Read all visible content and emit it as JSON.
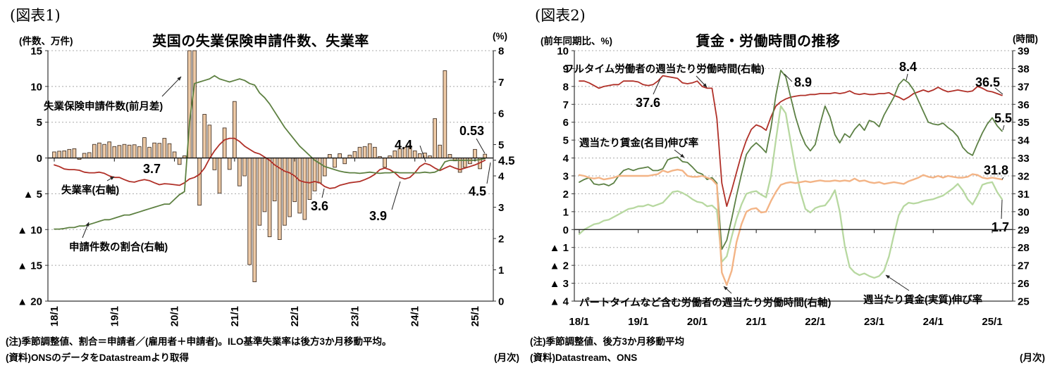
{
  "figure1": {
    "tag": "(図表1)",
    "title": "英国の失業保険申請件数、失業率",
    "unit_left": "(件数、万件)",
    "unit_right": "(%)",
    "note1": "(注)季節調整値、割合＝申請者／(雇用者＋申請者)。ILO基準失業率は後方3か月移動平均。",
    "note2": "(資料)ONSのデータをDatastreamより取得",
    "freq": "(月次)",
    "ann": {
      "bars": "失業保険申請件数(前月差)",
      "rate": "失業率(右軸)",
      "ratio": "申請件数の割合(右軸)",
      "v37": "3.7",
      "v36": "3.6",
      "v39": "3.9",
      "v44": "4.4",
      "v053": "0.53",
      "v45": "4.5"
    }
  },
  "figure2": {
    "tag": "(図表2)",
    "title": "賃金・労働時間の推移",
    "unit_left": "(前年同期比、%)",
    "unit_right": "(時間)",
    "note1": "(注)季節調整値、後方3か月移動平均",
    "note2": "(資料)Datastream、ONS",
    "freq": "(月次)",
    "ann": {
      "ft": "フルタイム労働者の週当たり労働時間(右軸)",
      "v376": "37.6",
      "nom": "週当たり賃金(名目)伸び率",
      "v89": "8.9",
      "v84": "8.4",
      "v365": "36.5",
      "v55": "5.5",
      "v318": "31.8",
      "v17": "1.7",
      "pt": "パートタイムなど含む労働者の週当たり労働時間(右軸)",
      "real": "週当たり賃金(実質)伸び率"
    }
  },
  "chart_data": [
    {
      "id": "uk-claims-unemployment",
      "type": "bar+line",
      "title": "英国の失業保険申請件数、失業率",
      "frequency": "monthly",
      "x_start": "2018-01",
      "x_end": "2025-03",
      "clipped_note": "2020/4 and 2020/5 claim bars exceed the axis and are clipped at +15",
      "x_axis": {
        "ticks": [
          {
            "i": 0,
            "label": "18/1"
          },
          {
            "i": 12,
            "label": "19/1"
          },
          {
            "i": 24,
            "label": "20/1"
          },
          {
            "i": 36,
            "label": "21/1"
          },
          {
            "i": 48,
            "label": "22/1"
          },
          {
            "i": 60,
            "label": "23/1"
          },
          {
            "i": 72,
            "label": "24/1"
          },
          {
            "i": 84,
            "label": "25/1"
          }
        ]
      },
      "y_axis_left": {
        "label": "件数、万件",
        "range": [
          -20,
          15
        ],
        "ticks": [
          {
            "v": 15,
            "label": "15"
          },
          {
            "v": 10,
            "label": "10"
          },
          {
            "v": 5,
            "label": "5"
          },
          {
            "v": 0,
            "label": "0"
          },
          {
            "v": -5,
            "label": "▲ 5"
          },
          {
            "v": -10,
            "label": "▲ 10"
          },
          {
            "v": -15,
            "label": "▲ 15"
          },
          {
            "v": -20,
            "label": "▲ 20"
          }
        ]
      },
      "y_axis_right": {
        "label": "%",
        "range": [
          0,
          8
        ],
        "ticks": [
          {
            "v": 8,
            "label": "8"
          },
          {
            "v": 7,
            "label": "7"
          },
          {
            "v": 6,
            "label": "6"
          },
          {
            "v": 5,
            "label": "5"
          },
          {
            "v": 4.5,
            "label": "4.5",
            "em": true
          },
          {
            "v": 4,
            "label": "4"
          },
          {
            "v": 3,
            "label": "3"
          },
          {
            "v": 2,
            "label": "2"
          },
          {
            "v": 1,
            "label": "1"
          },
          {
            "v": 0,
            "label": "0"
          }
        ]
      },
      "series": [
        {
          "id": "claims-change",
          "name": "失業保険申請件数(前月差)",
          "type": "bar",
          "axis": "left",
          "color": "#eecaa6",
          "border": "#453428",
          "values": [
            0.85,
            0.95,
            1.0,
            1.2,
            1.3,
            -0.2,
            0.65,
            0.75,
            1.9,
            2.1,
            1.9,
            2.25,
            1.6,
            1.75,
            1.9,
            1.8,
            1.85,
            1.6,
            2.85,
            1.5,
            2.1,
            2.05,
            2.75,
            2.0,
            0.85,
            -0.9,
            0.3,
            85,
            53,
            -6.6,
            6.1,
            4.6,
            -1.65,
            -4.9,
            4.2,
            -1.6,
            7.9,
            -3.9,
            -2.5,
            -14.9,
            -17.3,
            -9.4,
            -7.5,
            -11.0,
            -6.0,
            -11.4,
            -9.4,
            -8.2,
            -6.1,
            -7.7,
            -8.6,
            -5.8,
            -4.6,
            -3.5,
            -2.5,
            0.5,
            -1.3,
            0.6,
            -0.8,
            0.4,
            0.9,
            1.5,
            1.6,
            2.0,
            1.5,
            0.2,
            -1.3,
            0.3,
            1.0,
            1.3,
            1.5,
            1.7,
            1.0,
            0.6,
            0.7,
            0.3,
            5.5,
            1.8,
            12.2,
            0.5,
            -0.4,
            -2.0,
            -1.3,
            -0.8,
            1.2,
            -1.5,
            0.53
          ]
        },
        {
          "id": "unemployment-rate",
          "name": "失業率(右軸)",
          "type": "line",
          "axis": "right",
          "color": "#b03028",
          "width": 1.8,
          "values": [
            4.35,
            4.3,
            4.22,
            4.2,
            4.2,
            4.18,
            4.12,
            4.1,
            4.1,
            4.12,
            4.08,
            4.0,
            3.95,
            3.95,
            3.88,
            3.82,
            3.8,
            3.85,
            3.88,
            3.85,
            3.78,
            3.72,
            3.75,
            3.74,
            3.72,
            3.7,
            3.78,
            3.9,
            3.95,
            4.05,
            4.25,
            4.55,
            4.8,
            5.0,
            5.15,
            5.2,
            5.2,
            5.1,
            4.95,
            4.85,
            4.75,
            4.7,
            4.6,
            4.5,
            4.35,
            4.25,
            4.15,
            4.1,
            4.0,
            3.85,
            3.8,
            3.78,
            3.82,
            3.78,
            3.66,
            3.6,
            3.62,
            3.7,
            3.74,
            3.78,
            3.8,
            3.82,
            3.88,
            3.95,
            4.05,
            4.2,
            4.25,
            4.2,
            4.1,
            3.95,
            3.9,
            3.95,
            4.1,
            4.3,
            4.4,
            4.35,
            4.25,
            4.17,
            4.25,
            4.32,
            4.25,
            4.2,
            4.25,
            4.3,
            4.35,
            4.42,
            4.5
          ]
        },
        {
          "id": "claims-ratio",
          "name": "申請件数の割合(右軸)",
          "type": "line",
          "axis": "right",
          "color": "#5d8041",
          "width": 1.8,
          "values": [
            2.3,
            2.3,
            2.32,
            2.35,
            2.35,
            2.4,
            2.4,
            2.45,
            2.5,
            2.55,
            2.6,
            2.6,
            2.65,
            2.7,
            2.75,
            2.75,
            2.8,
            2.85,
            2.9,
            2.95,
            3.0,
            3.05,
            3.1,
            3.1,
            3.25,
            3.4,
            3.5,
            5.7,
            6.95,
            7.0,
            7.05,
            7.1,
            7.2,
            7.1,
            7.05,
            7.0,
            7.05,
            7.1,
            7.05,
            6.95,
            6.9,
            6.65,
            6.5,
            6.3,
            6.05,
            5.8,
            5.55,
            5.35,
            5.15,
            4.95,
            4.8,
            4.65,
            4.5,
            4.4,
            4.3,
            4.25,
            4.2,
            4.15,
            4.12,
            4.1,
            4.1,
            4.08,
            4.1,
            4.12,
            4.1,
            4.08,
            4.1,
            4.1,
            4.12,
            4.1,
            4.1,
            4.1,
            4.1,
            4.1,
            4.12,
            4.1,
            4.12,
            4.2,
            4.45,
            4.5,
            4.5,
            4.5,
            4.5,
            4.5,
            4.5,
            4.52,
            4.55
          ]
        }
      ]
    },
    {
      "id": "uk-wages-hours",
      "type": "line",
      "title": "賃金・労働時間の推移",
      "frequency": "monthly",
      "x_start": "2018-01",
      "x_end": "2025-03",
      "x_axis": {
        "ticks": [
          {
            "i": 0,
            "label": "18/1"
          },
          {
            "i": 12,
            "label": "19/1"
          },
          {
            "i": 24,
            "label": "20/1"
          },
          {
            "i": 36,
            "label": "21/1"
          },
          {
            "i": 48,
            "label": "22/1"
          },
          {
            "i": 60,
            "label": "23/1"
          },
          {
            "i": 72,
            "label": "24/1"
          },
          {
            "i": 84,
            "label": "25/1"
          }
        ]
      },
      "y_axis_left": {
        "label": "前年同期比、%",
        "range": [
          -4,
          10
        ],
        "ticks": [
          {
            "v": 10,
            "label": "10"
          },
          {
            "v": 9,
            "label": "9"
          },
          {
            "v": 8,
            "label": "8"
          },
          {
            "v": 7,
            "label": "7"
          },
          {
            "v": 6,
            "label": "6"
          },
          {
            "v": 5,
            "label": "5"
          },
          {
            "v": 4,
            "label": "4"
          },
          {
            "v": 3,
            "label": "3"
          },
          {
            "v": 2,
            "label": "2"
          },
          {
            "v": 1,
            "label": "1"
          },
          {
            "v": 0,
            "label": "0"
          },
          {
            "v": -1,
            "label": "▲ 1"
          },
          {
            "v": -2,
            "label": "▲ 2"
          },
          {
            "v": -3,
            "label": "▲ 3"
          },
          {
            "v": -4,
            "label": "▲ 4"
          }
        ]
      },
      "y_axis_right": {
        "label": "時間",
        "range": [
          25,
          39
        ],
        "ticks": [
          {
            "v": 39,
            "label": "39"
          },
          {
            "v": 38,
            "label": "38"
          },
          {
            "v": 37,
            "label": "37"
          },
          {
            "v": 36,
            "label": "36"
          },
          {
            "v": 35,
            "label": "35"
          },
          {
            "v": 34,
            "label": "34"
          },
          {
            "v": 33,
            "label": "33"
          },
          {
            "v": 32,
            "label": "32"
          },
          {
            "v": 31,
            "label": "31"
          },
          {
            "v": 30,
            "label": "30"
          },
          {
            "v": 29,
            "label": "29"
          },
          {
            "v": 28,
            "label": "28"
          },
          {
            "v": 27,
            "label": "27"
          },
          {
            "v": 26,
            "label": "26"
          },
          {
            "v": 25,
            "label": "25"
          }
        ]
      },
      "series": [
        {
          "id": "fulltime-hours",
          "name": "フルタイム労働者の週当たり労働時間(右軸)",
          "type": "line",
          "axis": "right",
          "color": "#b03028",
          "width": 1.8,
          "values": [
            37.3,
            37.3,
            37.2,
            37.05,
            36.9,
            37.0,
            37.05,
            37.1,
            37.1,
            37.3,
            37.3,
            37.3,
            37.25,
            37.1,
            37.05,
            37.1,
            37.3,
            37.6,
            37.55,
            37.5,
            37.45,
            37.2,
            37.15,
            37.2,
            37.3,
            37.0,
            36.9,
            36.9,
            35.2,
            31.6,
            30.3,
            31.2,
            32.2,
            33.2,
            34.0,
            34.6,
            34.85,
            34.75,
            34.55,
            35.3,
            35.9,
            36.15,
            36.3,
            36.4,
            36.45,
            36.5,
            36.5,
            36.55,
            36.55,
            36.6,
            36.6,
            36.6,
            36.65,
            36.6,
            36.65,
            36.75,
            36.6,
            36.55,
            36.6,
            36.55,
            36.55,
            36.6,
            36.6,
            36.65,
            36.5,
            36.4,
            36.25,
            36.4,
            36.6,
            36.7,
            36.8,
            36.7,
            36.8,
            36.95,
            36.8,
            36.7,
            36.75,
            36.8,
            36.75,
            36.7,
            36.75,
            37.0,
            36.9,
            36.75,
            36.7,
            36.6,
            36.5
          ]
        },
        {
          "id": "nominal-wage",
          "name": "週当たり賃金(名目)伸び率",
          "type": "line",
          "axis": "left",
          "color": "#5c8044",
          "width": 1.8,
          "values": [
            2.65,
            2.8,
            2.9,
            2.55,
            2.5,
            2.55,
            2.45,
            2.6,
            3.0,
            3.3,
            3.4,
            3.3,
            3.4,
            3.45,
            3.5,
            3.3,
            3.3,
            3.4,
            3.9,
            4.0,
            4.05,
            3.8,
            3.75,
            3.5,
            3.2,
            3.1,
            2.8,
            2.9,
            2.6,
            -1.1,
            -0.6,
            0.6,
            1.9,
            3.1,
            4.2,
            4.6,
            4.85,
            4.6,
            4.3,
            5.7,
            7.5,
            8.9,
            8.55,
            7.4,
            6.3,
            5.4,
            4.75,
            4.4,
            4.75,
            5.9,
            6.9,
            6.3,
            5.3,
            4.85,
            5.35,
            5.15,
            5.6,
            5.9,
            5.55,
            6.1,
            6.0,
            5.75,
            6.4,
            6.9,
            7.4,
            8.1,
            8.4,
            8.2,
            7.8,
            7.2,
            6.6,
            6.0,
            5.9,
            5.85,
            5.95,
            5.7,
            5.5,
            5.2,
            4.6,
            4.3,
            4.15,
            4.8,
            5.4,
            5.9,
            6.25,
            5.8,
            5.5
          ]
        },
        {
          "id": "real-wage",
          "name": "週当たり賃金(実質)伸び率",
          "type": "line",
          "axis": "left",
          "color": "#b7d8a0",
          "width": 2.3,
          "values": [
            -0.25,
            0.0,
            0.15,
            0.3,
            0.35,
            0.5,
            0.55,
            0.7,
            0.85,
            1.0,
            1.15,
            1.2,
            1.3,
            1.3,
            1.4,
            1.3,
            1.4,
            1.5,
            1.8,
            2.1,
            2.15,
            2.05,
            1.9,
            1.7,
            1.55,
            1.5,
            1.3,
            1.35,
            1.1,
            -1.8,
            -1.5,
            -0.4,
            0.6,
            1.4,
            2.0,
            2.1,
            2.15,
            1.95,
            1.8,
            3.0,
            5.0,
            6.9,
            6.5,
            4.9,
            3.4,
            2.1,
            1.15,
            0.95,
            1.2,
            1.3,
            1.35,
            1.7,
            2.2,
            1.0,
            -0.9,
            -2.1,
            -2.4,
            -2.55,
            -2.45,
            -2.6,
            -2.7,
            -2.6,
            -2.3,
            -1.5,
            -0.3,
            0.8,
            1.3,
            1.5,
            1.45,
            1.5,
            1.6,
            1.65,
            1.7,
            1.8,
            1.9,
            2.1,
            2.3,
            2.55,
            2.2,
            1.7,
            1.4,
            1.9,
            2.5,
            2.6,
            2.65,
            2.1,
            1.7
          ]
        },
        {
          "id": "parttime-incl-hours",
          "name": "パートタイムなど含む労働者の週当たり労働時間(右軸)",
          "type": "line",
          "axis": "right",
          "color": "#f3b486",
          "width": 2.4,
          "values": [
            32.05,
            32.0,
            31.9,
            31.85,
            31.9,
            31.8,
            31.85,
            31.9,
            32.0,
            32.0,
            32.0,
            32.0,
            32.0,
            32.0,
            32.0,
            32.05,
            32.1,
            32.3,
            32.2,
            32.3,
            32.35,
            32.3,
            32.0,
            31.95,
            31.95,
            32.0,
            31.9,
            31.8,
            31.5,
            26.6,
            25.9,
            26.7,
            28.3,
            29.3,
            30.0,
            30.15,
            30.2,
            29.95,
            30.0,
            30.6,
            31.1,
            31.5,
            31.6,
            31.65,
            31.6,
            31.65,
            31.7,
            31.65,
            31.7,
            31.75,
            31.7,
            31.7,
            31.75,
            31.7,
            31.75,
            31.7,
            31.85,
            31.7,
            31.75,
            31.65,
            31.6,
            31.65,
            31.55,
            31.6,
            31.65,
            31.6,
            31.55,
            31.7,
            31.8,
            31.9,
            32.05,
            31.95,
            31.9,
            32.0,
            31.9,
            32.0,
            31.95,
            31.9,
            31.9,
            31.95,
            32.1,
            32.05,
            31.9,
            31.85,
            31.9,
            31.85,
            31.8
          ]
        }
      ]
    }
  ]
}
